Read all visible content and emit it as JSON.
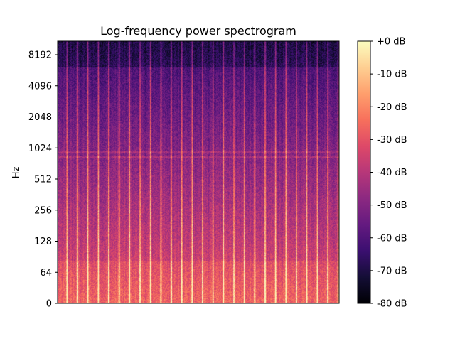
{
  "chart_data": {
    "type": "heatmap",
    "title": "Log-frequency power spectrogram",
    "xlabel": "",
    "ylabel": "Hz",
    "y_scale": "log2-frequency",
    "y_ticks": [
      "0",
      "64",
      "128",
      "256",
      "512",
      "1024",
      "2048",
      "4096",
      "8192"
    ],
    "y_tick_values": [
      0,
      64,
      128,
      256,
      512,
      1024,
      2048,
      4096,
      8192
    ],
    "x_ticks": [],
    "colormap": "magma",
    "colorbar": {
      "ticks": [
        "+0 dB",
        "-10 dB",
        "-20 dB",
        "-30 dB",
        "-40 dB",
        "-50 dB",
        "-60 dB",
        "-70 dB",
        "-80 dB"
      ],
      "tick_values": [
        0,
        -10,
        -20,
        -30,
        -40,
        -50,
        -60,
        -70,
        -80
      ],
      "range": [
        -80,
        0
      ],
      "colors": [
        "#000004",
        "#140e36",
        "#3b0f70",
        "#641a80",
        "#8c2981",
        "#b73779",
        "#de4968",
        "#f7705c",
        "#fe9f6d",
        "#fecf92",
        "#fcfdbf"
      ]
    },
    "grid": false,
    "beat_count": 27
  }
}
